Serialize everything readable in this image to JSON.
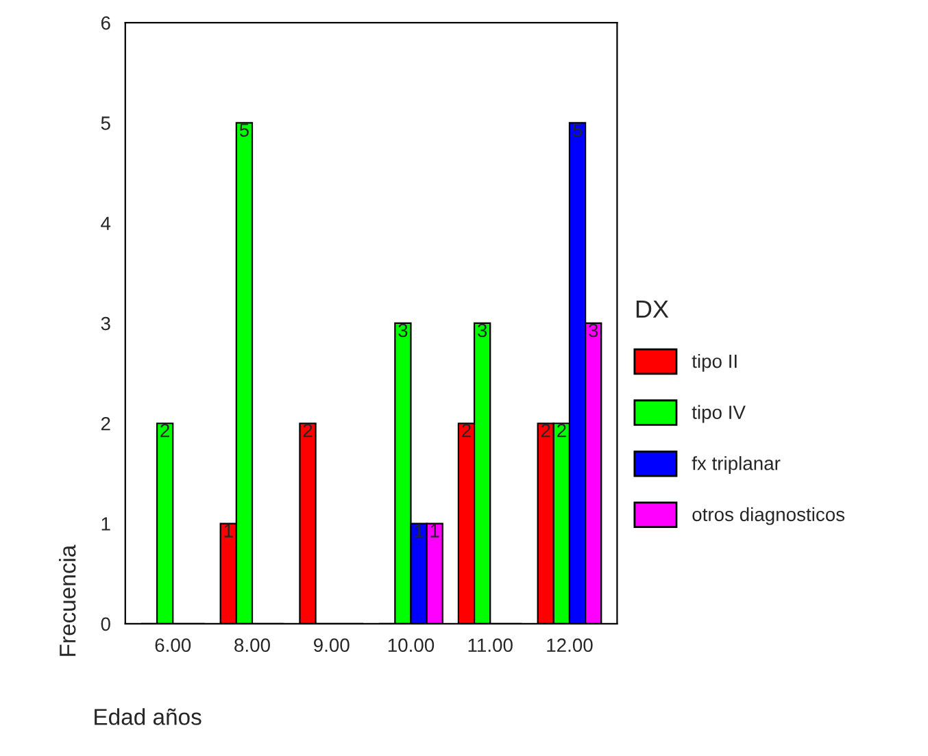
{
  "chart_data": {
    "type": "bar",
    "xlabel": "Edad años",
    "ylabel": "Frecuencia",
    "legend_title": "DX",
    "categories": [
      "6.00",
      "8.00",
      "9.00",
      "10.00",
      "11.00",
      "12.00"
    ],
    "series": [
      {
        "name": "tipo II",
        "color": "#ff0000",
        "values": [
          0,
          1,
          2,
          0,
          2,
          2
        ],
        "value_labels": [
          null,
          "1",
          "2",
          null,
          "2",
          "2"
        ]
      },
      {
        "name": "tipo IV",
        "color": "#00ff00",
        "values": [
          2,
          5,
          0,
          3,
          3,
          2
        ],
        "value_labels": [
          "2",
          "5",
          null,
          "3",
          "3",
          "2"
        ]
      },
      {
        "name": "fx triplanar",
        "color": "#0000ff",
        "values": [
          0,
          0,
          0,
          1,
          0,
          5
        ],
        "value_labels": [
          null,
          null,
          null,
          "1",
          null,
          "5"
        ]
      },
      {
        "name": "otros diagnosticos",
        "color": "#ff00ff",
        "values": [
          0,
          0,
          0,
          1,
          0,
          3
        ],
        "value_labels": [
          null,
          null,
          null,
          "1",
          null,
          "3"
        ]
      }
    ],
    "ylim": [
      0,
      6
    ],
    "yticks": [
      0,
      1,
      2,
      3,
      4,
      5,
      6
    ],
    "grid": false,
    "legend": "right"
  }
}
